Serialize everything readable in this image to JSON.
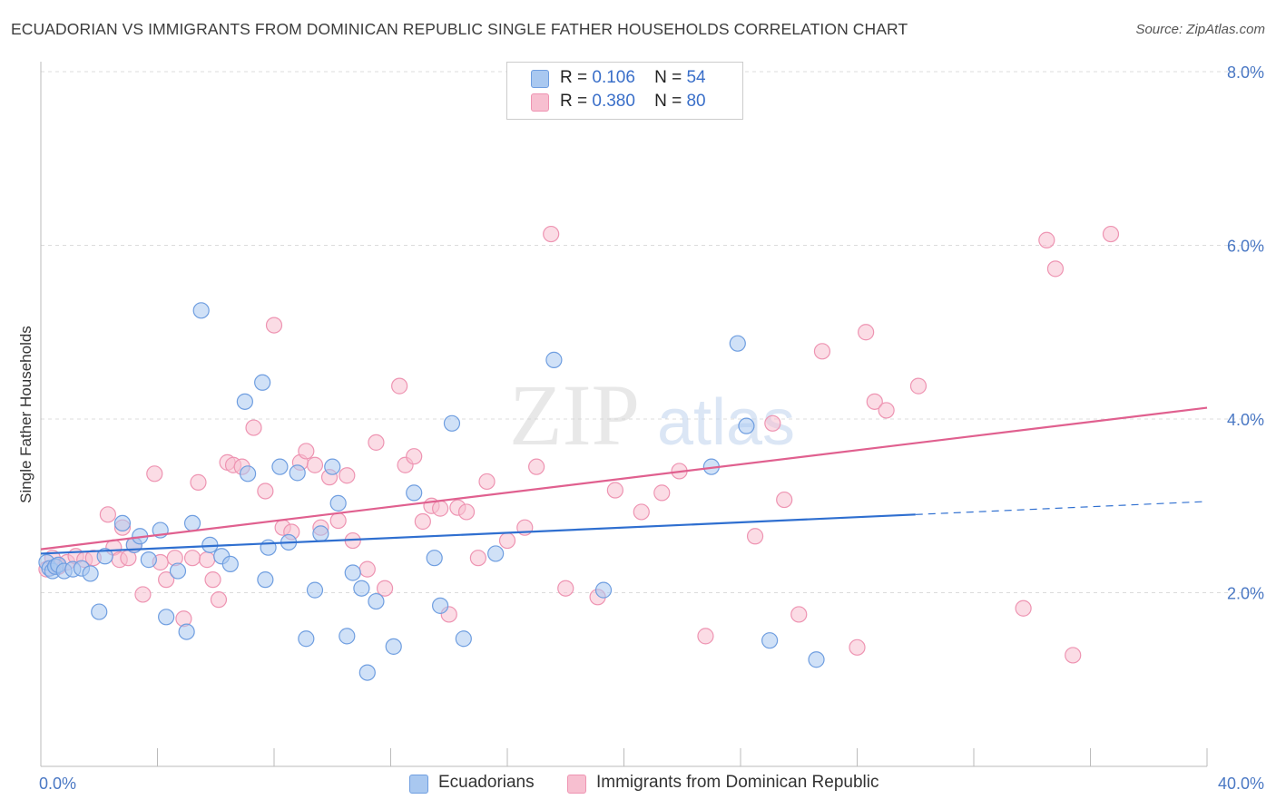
{
  "title": "ECUADORIAN VS IMMIGRANTS FROM DOMINICAN REPUBLIC SINGLE FATHER HOUSEHOLDS CORRELATION CHART",
  "source": "Source: ZipAtlas.com",
  "watermark": {
    "zip": "ZIP",
    "atlas": "atlas"
  },
  "legend": {
    "r_label": "R =",
    "n_label": "N =",
    "rows": [
      {
        "r": "0.106",
        "n": "54"
      },
      {
        "r": "0.380",
        "n": "80"
      }
    ]
  },
  "colors": {
    "ecuadorians_fill": "#a9c8f0",
    "ecuadorians_stroke": "#6f9ee0",
    "ecuadorians_line": "#2f6fd0",
    "dominican_fill": "#f7bfd0",
    "dominican_stroke": "#ee94b2",
    "dominican_line": "#e0608f",
    "axis_text": "#4a78c4",
    "grid": "#dcdcdc"
  },
  "chart_data": {
    "type": "scatter",
    "title": "ECUADORIAN VS IMMIGRANTS FROM DOMINICAN REPUBLIC SINGLE FATHER HOUSEHOLDS CORRELATION CHART",
    "xlabel": "",
    "ylabel": "Single Father Households",
    "xlim": [
      0,
      40
    ],
    "ylim": [
      0,
      8
    ],
    "x_tick_labels": [
      "0.0%",
      "40.0%"
    ],
    "y_ticks": [
      2,
      4,
      6,
      8
    ],
    "y_tick_labels": [
      "2.0%",
      "4.0%",
      "6.0%",
      "8.0%"
    ],
    "grid": true,
    "legend_position": "top-center",
    "series": [
      {
        "name": "Ecuadorians",
        "r": 0.106,
        "n": 54,
        "trend": {
          "x0": 0,
          "y0": 2.45,
          "x1": 30,
          "y1": 2.9,
          "dash_to_x": 40,
          "dash_to_y": 3.05
        },
        "points": [
          [
            0.2,
            2.35
          ],
          [
            0.3,
            2.28
          ],
          [
            0.4,
            2.25
          ],
          [
            0.5,
            2.3
          ],
          [
            0.6,
            2.32
          ],
          [
            0.8,
            2.25
          ],
          [
            1.1,
            2.27
          ],
          [
            1.4,
            2.28
          ],
          [
            1.7,
            2.22
          ],
          [
            2.0,
            1.78
          ],
          [
            2.2,
            2.42
          ],
          [
            2.8,
            2.8
          ],
          [
            3.2,
            2.55
          ],
          [
            3.4,
            2.65
          ],
          [
            3.7,
            2.38
          ],
          [
            4.1,
            2.72
          ],
          [
            4.3,
            1.72
          ],
          [
            4.7,
            2.25
          ],
          [
            5.0,
            1.55
          ],
          [
            5.2,
            2.8
          ],
          [
            5.5,
            5.25
          ],
          [
            5.8,
            2.55
          ],
          [
            6.2,
            2.42
          ],
          [
            6.5,
            2.33
          ],
          [
            7.0,
            4.2
          ],
          [
            7.1,
            3.37
          ],
          [
            7.6,
            4.42
          ],
          [
            7.7,
            2.15
          ],
          [
            7.8,
            2.52
          ],
          [
            8.2,
            3.45
          ],
          [
            8.5,
            2.58
          ],
          [
            8.8,
            3.38
          ],
          [
            9.1,
            1.47
          ],
          [
            9.4,
            2.03
          ],
          [
            9.6,
            2.68
          ],
          [
            10.0,
            3.45
          ],
          [
            10.2,
            3.03
          ],
          [
            10.5,
            1.5
          ],
          [
            10.7,
            2.23
          ],
          [
            11.0,
            2.05
          ],
          [
            11.2,
            1.08
          ],
          [
            11.5,
            1.9
          ],
          [
            12.1,
            1.38
          ],
          [
            12.8,
            3.15
          ],
          [
            13.5,
            2.4
          ],
          [
            13.7,
            1.85
          ],
          [
            14.1,
            3.95
          ],
          [
            14.5,
            1.47
          ],
          [
            15.6,
            2.45
          ],
          [
            17.6,
            4.68
          ],
          [
            19.3,
            2.03
          ],
          [
            23.9,
            4.87
          ],
          [
            24.2,
            3.92
          ],
          [
            25.0,
            1.45
          ],
          [
            26.6,
            1.23
          ],
          [
            23.0,
            3.45
          ]
        ]
      },
      {
        "name": "Immigrants from Dominican Republic",
        "r": 0.38,
        "n": 80,
        "trend": {
          "x0": 0,
          "y0": 2.5,
          "x1": 40,
          "y1": 4.13
        },
        "points": [
          [
            0.2,
            2.27
          ],
          [
            0.4,
            2.4
          ],
          [
            0.6,
            2.3
          ],
          [
            0.9,
            2.35
          ],
          [
            1.2,
            2.42
          ],
          [
            1.5,
            2.38
          ],
          [
            1.8,
            2.4
          ],
          [
            2.3,
            2.9
          ],
          [
            2.5,
            2.52
          ],
          [
            2.7,
            2.38
          ],
          [
            2.8,
            2.75
          ],
          [
            3.0,
            2.4
          ],
          [
            3.2,
            2.55
          ],
          [
            3.5,
            1.98
          ],
          [
            3.9,
            3.37
          ],
          [
            4.1,
            2.35
          ],
          [
            4.3,
            2.15
          ],
          [
            4.6,
            2.4
          ],
          [
            4.9,
            1.7
          ],
          [
            5.2,
            2.4
          ],
          [
            5.4,
            3.27
          ],
          [
            5.7,
            2.38
          ],
          [
            5.9,
            2.15
          ],
          [
            6.1,
            1.92
          ],
          [
            6.4,
            3.5
          ],
          [
            6.6,
            3.47
          ],
          [
            6.9,
            3.45
          ],
          [
            7.3,
            3.9
          ],
          [
            7.7,
            3.17
          ],
          [
            8.0,
            5.08
          ],
          [
            8.3,
            2.75
          ],
          [
            8.6,
            2.7
          ],
          [
            8.9,
            3.5
          ],
          [
            9.1,
            3.63
          ],
          [
            9.4,
            3.47
          ],
          [
            9.6,
            2.75
          ],
          [
            9.9,
            3.33
          ],
          [
            10.2,
            2.83
          ],
          [
            10.5,
            3.35
          ],
          [
            10.7,
            2.6
          ],
          [
            11.2,
            2.27
          ],
          [
            11.5,
            3.73
          ],
          [
            11.8,
            2.05
          ],
          [
            12.3,
            4.38
          ],
          [
            12.5,
            3.47
          ],
          [
            12.8,
            3.57
          ],
          [
            13.1,
            2.82
          ],
          [
            13.4,
            3.0
          ],
          [
            13.7,
            2.97
          ],
          [
            14.0,
            1.75
          ],
          [
            14.3,
            2.98
          ],
          [
            14.6,
            2.93
          ],
          [
            15.0,
            2.4
          ],
          [
            15.3,
            3.28
          ],
          [
            16.0,
            2.6
          ],
          [
            16.6,
            2.75
          ],
          [
            17.0,
            3.45
          ],
          [
            17.5,
            6.13
          ],
          [
            18.0,
            2.05
          ],
          [
            19.1,
            1.95
          ],
          [
            19.7,
            3.18
          ],
          [
            20.6,
            2.93
          ],
          [
            21.3,
            3.15
          ],
          [
            21.9,
            3.4
          ],
          [
            22.8,
            1.5
          ],
          [
            24.5,
            2.65
          ],
          [
            25.1,
            3.95
          ],
          [
            25.5,
            3.07
          ],
          [
            26.0,
            1.75
          ],
          [
            26.8,
            4.78
          ],
          [
            28.0,
            1.37
          ],
          [
            28.3,
            5.0
          ],
          [
            28.6,
            4.2
          ],
          [
            29.0,
            4.1
          ],
          [
            30.1,
            4.38
          ],
          [
            33.7,
            1.82
          ],
          [
            34.5,
            6.06
          ],
          [
            34.8,
            5.73
          ],
          [
            35.4,
            1.28
          ],
          [
            36.7,
            6.13
          ]
        ]
      }
    ]
  },
  "bottom_legend": [
    "Ecuadorians",
    "Immigrants from Dominican Republic"
  ]
}
